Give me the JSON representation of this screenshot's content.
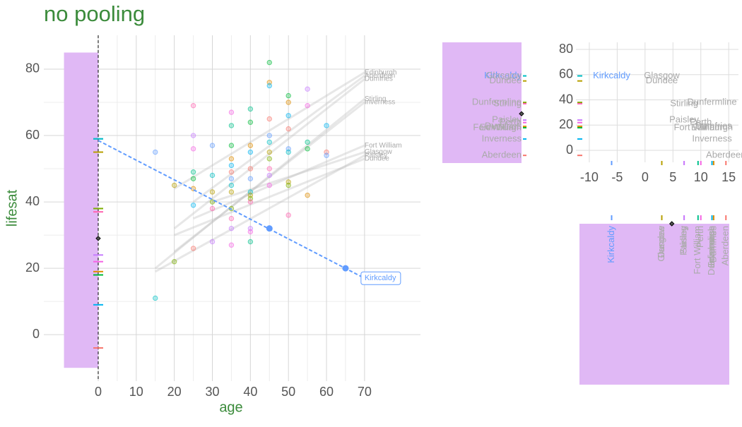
{
  "chart_data": [
    {
      "type": "scatter",
      "title": "no pooling",
      "x_label": "age",
      "y_label": "lifesat",
      "xlim": [
        -14.3,
        84.7
      ],
      "ylim": [
        -14,
        90.2
      ],
      "xticks": [
        0,
        10,
        20,
        30,
        40,
        50,
        60,
        70
      ],
      "yticks": [
        0,
        20,
        40,
        60,
        80
      ],
      "grid": true,
      "shade": {
        "x": [
          -9,
          0
        ],
        "y": [
          -10,
          85
        ],
        "color": "#e0b8f5"
      },
      "vline": 0,
      "points": {
        "x": [
          15,
          15,
          20,
          20,
          25,
          25,
          25,
          25,
          25,
          25,
          25,
          25,
          30,
          30,
          30,
          30,
          30,
          30,
          35,
          35,
          35,
          35,
          35,
          35,
          35,
          35,
          35,
          35,
          35,
          35,
          35,
          40,
          40,
          40,
          40,
          40,
          40,
          40,
          40,
          40,
          40,
          40,
          40,
          40,
          45,
          45,
          45,
          45,
          45,
          45,
          45,
          45,
          45,
          45,
          45,
          45,
          50,
          50,
          50,
          50,
          50,
          50,
          50,
          50,
          50,
          55,
          55,
          55,
          55,
          55,
          60,
          60,
          60
        ],
        "y": [
          55,
          11,
          45,
          22,
          69,
          60,
          56,
          49,
          47,
          44,
          39,
          26,
          57,
          48,
          43,
          40,
          38,
          28,
          67,
          63,
          57,
          53,
          51,
          49,
          47,
          45,
          43,
          38,
          35,
          32,
          27,
          68,
          64,
          57,
          55,
          50,
          47,
          43,
          42,
          41,
          40,
          32,
          31,
          28,
          82,
          76,
          75,
          65,
          60,
          58,
          55,
          53,
          50,
          48,
          45,
          32,
          72,
          70,
          66,
          62,
          56,
          55,
          46,
          45,
          36,
          74,
          69,
          58,
          56,
          42,
          63,
          55,
          54
        ]
      },
      "town_lines": {
        "labels": [
          "Edinburgh",
          "Aberdeen",
          "Dumfries",
          "Stirling",
          "Inverness",
          "Fort William",
          "Glasgow",
          "Paisley",
          "Dundee"
        ],
        "x0": [
          20,
          25,
          20,
          15,
          20,
          25,
          30,
          15,
          20
        ],
        "y0": [
          44,
          40,
          32,
          20,
          25,
          35,
          40,
          19,
          30
        ],
        "x1": [
          70,
          70,
          70,
          70,
          70,
          70,
          70,
          70,
          70
        ],
        "y1": [
          79,
          78,
          77,
          71,
          70,
          57,
          55,
          54,
          53
        ]
      },
      "fit": {
        "name": "Kirkcaldy",
        "color": "#619cff",
        "x": [
          0,
          70
        ],
        "y": [
          58.5,
          17
        ]
      },
      "highlight": {
        "x": [
          45,
          65
        ],
        "y": [
          32,
          20
        ]
      },
      "mean": {
        "x": 0,
        "y": 29
      }
    },
    {
      "type": "labelled-scatter",
      "xlim": [
        -12.4,
        16.75
      ],
      "ylim": [
        -9.5,
        85.6
      ],
      "xticks": [
        -10,
        -5,
        0,
        5,
        10,
        15
      ],
      "yticks": [
        0,
        20,
        40,
        60,
        80
      ],
      "grid": true,
      "labels": [
        "Kirkcaldy",
        "Glasgow",
        "Dundee",
        "Dunfermline",
        "Stirling",
        "Paisley",
        "Perth",
        "Fort William",
        "Edinburgh",
        "Dumfries",
        "Inverness",
        "Aberdeen"
      ],
      "x": [
        -6,
        3,
        3,
        12,
        7,
        7,
        10,
        9.5,
        12,
        12.3,
        12,
        14.5
      ],
      "y": [
        59,
        59,
        55,
        38,
        37,
        24,
        22,
        18,
        18,
        19,
        9,
        -4
      ],
      "colors": [
        "#619cff",
        "#00bfc4",
        "#b79f00",
        "#7cae00",
        "#ff64b0",
        "#c77cff",
        "#f564e3",
        "#00c08b",
        "#00ba38",
        "#de8c00",
        "#00b4f0",
        "#f8766d"
      ],
      "label_colors": [
        "#619cff",
        "#aaaaaa",
        "#aaaaaa",
        "#aaaaaa",
        "#aaaaaa",
        "#aaaaaa",
        "#aaaaaa",
        "#aaaaaa",
        "#aaaaaa",
        "#aaaaaa",
        "#aaaaaa",
        "#aaaaaa"
      ],
      "mean": {
        "x": 4.8,
        "y": 29
      },
      "shade_color": "#e0b8f5"
    }
  ]
}
